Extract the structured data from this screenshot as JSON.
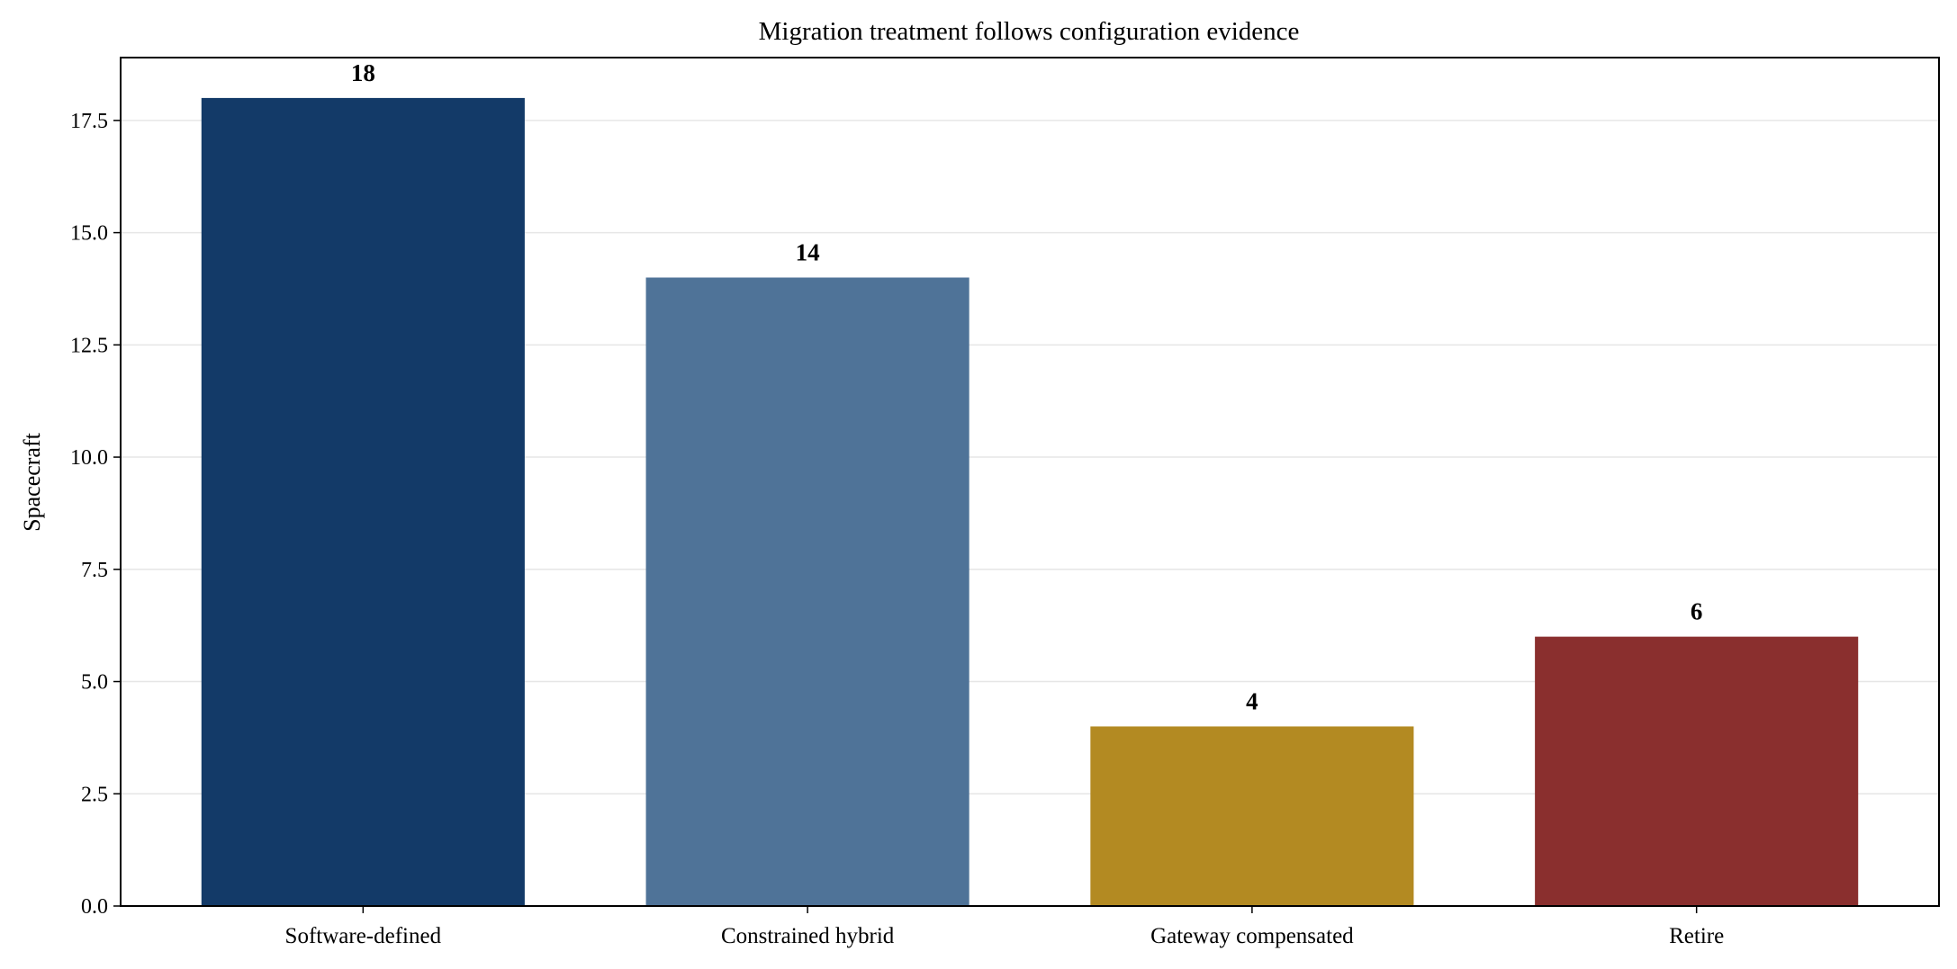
{
  "chart_data": {
    "type": "bar",
    "title": "Migration treatment follows configuration evidence",
    "xlabel": "",
    "ylabel": "Spacecraft",
    "categories": [
      "Software-defined",
      "Constrained hybrid",
      "Gateway compensated",
      "Retire"
    ],
    "values": [
      18,
      14,
      4,
      6
    ],
    "data_labels": [
      "18",
      "14",
      "4",
      "6"
    ],
    "colors": [
      "#133a68",
      "#4f7398",
      "#b38a22",
      "#8a2f2e"
    ],
    "ylim": [
      0,
      18.9
    ],
    "yticks": [
      0.0,
      2.5,
      5.0,
      7.5,
      10.0,
      12.5,
      15.0,
      17.5
    ],
    "ytick_labels": [
      "0.0",
      "2.5",
      "5.0",
      "7.5",
      "10.0",
      "12.5",
      "15.0",
      "17.5"
    ],
    "grid": "horizontal",
    "legend": "none"
  }
}
